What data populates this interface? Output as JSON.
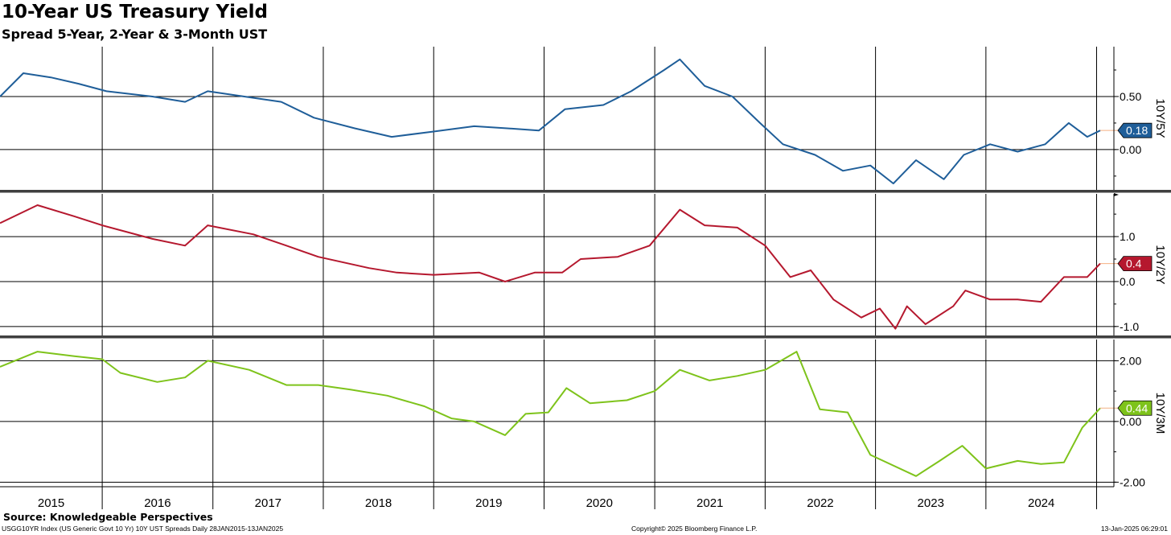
{
  "header": {
    "title": "10-Year US Treasury Yield",
    "subtitle": "Spread 5-Year, 2-Year & 3-Month UST"
  },
  "source": "Source: Knowledgeable Perspectives",
  "footer": {
    "left": "USGG10YR Index (US Generic Govt 10 Yr) 10Y UST Spreads  Daily 28JAN2015-13JAN2025",
    "center": "Copyright© 2025 Bloomberg Finance L.P.",
    "right": "13-Jan-2025 06:29:01"
  },
  "chart_data": {
    "type": "line",
    "x_range": [
      "2015-01-28",
      "2025-01-13"
    ],
    "x_tick_labels": [
      "2015",
      "2016",
      "2017",
      "2018",
      "2019",
      "2020",
      "2021",
      "2022",
      "2023",
      "2024"
    ],
    "grid": true,
    "panels": [
      {
        "name": "10Y/5Y",
        "color": "#1f5e99",
        "ylim": [
          -0.38,
          0.97
        ],
        "y_ticks": [
          0.0,
          0.5
        ],
        "y_tick_labels": [
          "0.00",
          "0.50"
        ],
        "last_value_label": "0.18",
        "points": [
          [
            "2015-01-28",
            0.5
          ],
          [
            "2015-04-15",
            0.72
          ],
          [
            "2015-07-15",
            0.68
          ],
          [
            "2015-10-15",
            0.62
          ],
          [
            "2016-01-15",
            0.55
          ],
          [
            "2016-06-15",
            0.5
          ],
          [
            "2016-10-01",
            0.45
          ],
          [
            "2016-12-15",
            0.55
          ],
          [
            "2017-04-15",
            0.5
          ],
          [
            "2017-08-15",
            0.45
          ],
          [
            "2017-12-01",
            0.3
          ],
          [
            "2018-04-15",
            0.2
          ],
          [
            "2018-08-15",
            0.12
          ],
          [
            "2019-01-01",
            0.17
          ],
          [
            "2019-05-15",
            0.22
          ],
          [
            "2019-09-01",
            0.2
          ],
          [
            "2019-12-15",
            0.18
          ],
          [
            "2020-03-10",
            0.38
          ],
          [
            "2020-07-15",
            0.42
          ],
          [
            "2020-10-15",
            0.55
          ],
          [
            "2021-02-01",
            0.75
          ],
          [
            "2021-03-25",
            0.85
          ],
          [
            "2021-06-15",
            0.6
          ],
          [
            "2021-09-15",
            0.5
          ],
          [
            "2021-12-15",
            0.25
          ],
          [
            "2022-03-01",
            0.05
          ],
          [
            "2022-06-15",
            -0.05
          ],
          [
            "2022-09-15",
            -0.2
          ],
          [
            "2022-12-15",
            -0.15
          ],
          [
            "2023-03-01",
            -0.32
          ],
          [
            "2023-05-15",
            -0.1
          ],
          [
            "2023-08-15",
            -0.28
          ],
          [
            "2023-10-20",
            -0.05
          ],
          [
            "2024-01-15",
            0.05
          ],
          [
            "2024-04-15",
            -0.02
          ],
          [
            "2024-07-15",
            0.05
          ],
          [
            "2024-10-01",
            0.25
          ],
          [
            "2024-12-01",
            0.12
          ],
          [
            "2025-01-13",
            0.18
          ]
        ]
      },
      {
        "name": "10Y/2Y",
        "color": "#b5182e",
        "ylim": [
          -1.2,
          1.95
        ],
        "y_ticks": [
          -1.0,
          0.0,
          1.0
        ],
        "y_tick_labels": [
          "-1.0",
          "0.0",
          "1.0"
        ],
        "last_value_label": "0.4",
        "points": [
          [
            "2015-01-28",
            1.3
          ],
          [
            "2015-06-01",
            1.7
          ],
          [
            "2015-10-01",
            1.45
          ],
          [
            "2016-01-01",
            1.25
          ],
          [
            "2016-06-15",
            0.95
          ],
          [
            "2016-10-01",
            0.8
          ],
          [
            "2016-12-15",
            1.25
          ],
          [
            "2017-05-15",
            1.05
          ],
          [
            "2017-09-01",
            0.8
          ],
          [
            "2017-12-15",
            0.55
          ],
          [
            "2018-06-01",
            0.3
          ],
          [
            "2018-09-01",
            0.2
          ],
          [
            "2019-01-01",
            0.15
          ],
          [
            "2019-06-01",
            0.2
          ],
          [
            "2019-08-25",
            0.0
          ],
          [
            "2019-12-01",
            0.2
          ],
          [
            "2020-03-01",
            0.2
          ],
          [
            "2020-05-01",
            0.5
          ],
          [
            "2020-09-01",
            0.55
          ],
          [
            "2020-12-15",
            0.8
          ],
          [
            "2021-03-25",
            1.6
          ],
          [
            "2021-06-15",
            1.25
          ],
          [
            "2021-10-01",
            1.2
          ],
          [
            "2022-01-01",
            0.8
          ],
          [
            "2022-03-25",
            0.1
          ],
          [
            "2022-06-01",
            0.25
          ],
          [
            "2022-08-15",
            -0.4
          ],
          [
            "2022-11-15",
            -0.8
          ],
          [
            "2023-01-15",
            -0.6
          ],
          [
            "2023-03-08",
            -1.05
          ],
          [
            "2023-04-15",
            -0.55
          ],
          [
            "2023-06-15",
            -0.95
          ],
          [
            "2023-09-15",
            -0.55
          ],
          [
            "2023-10-25",
            -0.2
          ],
          [
            "2024-01-15",
            -0.4
          ],
          [
            "2024-04-15",
            -0.4
          ],
          [
            "2024-07-01",
            -0.45
          ],
          [
            "2024-09-15",
            0.1
          ],
          [
            "2024-12-01",
            0.1
          ],
          [
            "2025-01-13",
            0.4
          ]
        ]
      },
      {
        "name": "10Y/3M",
        "color": "#7ec31b",
        "ylim": [
          -2.15,
          2.7
        ],
        "y_ticks": [
          -2.0,
          0.0,
          2.0
        ],
        "y_tick_labels": [
          "-2.00",
          "0.00",
          "2.00"
        ],
        "last_value_label": "0.44",
        "points": [
          [
            "2015-01-28",
            1.8
          ],
          [
            "2015-06-01",
            2.3
          ],
          [
            "2015-10-01",
            2.15
          ],
          [
            "2016-01-01",
            2.05
          ],
          [
            "2016-03-01",
            1.6
          ],
          [
            "2016-07-01",
            1.3
          ],
          [
            "2016-10-01",
            1.45
          ],
          [
            "2016-12-15",
            2.0
          ],
          [
            "2017-05-01",
            1.7
          ],
          [
            "2017-09-01",
            1.2
          ],
          [
            "2017-12-15",
            1.2
          ],
          [
            "2018-04-01",
            1.05
          ],
          [
            "2018-08-01",
            0.85
          ],
          [
            "2018-12-01",
            0.5
          ],
          [
            "2019-03-01",
            0.1
          ],
          [
            "2019-05-15",
            0.0
          ],
          [
            "2019-08-25",
            -0.45
          ],
          [
            "2019-11-01",
            0.25
          ],
          [
            "2020-01-15",
            0.3
          ],
          [
            "2020-03-15",
            1.1
          ],
          [
            "2020-06-01",
            0.6
          ],
          [
            "2020-10-01",
            0.7
          ],
          [
            "2021-01-01",
            1.0
          ],
          [
            "2021-03-25",
            1.7
          ],
          [
            "2021-07-01",
            1.35
          ],
          [
            "2021-10-01",
            1.5
          ],
          [
            "2022-01-01",
            1.7
          ],
          [
            "2022-04-15",
            2.3
          ],
          [
            "2022-07-01",
            0.4
          ],
          [
            "2022-10-01",
            0.3
          ],
          [
            "2022-12-15",
            -1.1
          ],
          [
            "2023-05-15",
            -1.8
          ],
          [
            "2023-08-01",
            -1.3
          ],
          [
            "2023-10-15",
            -0.8
          ],
          [
            "2024-01-01",
            -1.55
          ],
          [
            "2024-04-15",
            -1.3
          ],
          [
            "2024-07-01",
            -1.4
          ],
          [
            "2024-09-15",
            -1.35
          ],
          [
            "2024-11-15",
            -0.2
          ],
          [
            "2025-01-13",
            0.44
          ]
        ]
      }
    ]
  }
}
